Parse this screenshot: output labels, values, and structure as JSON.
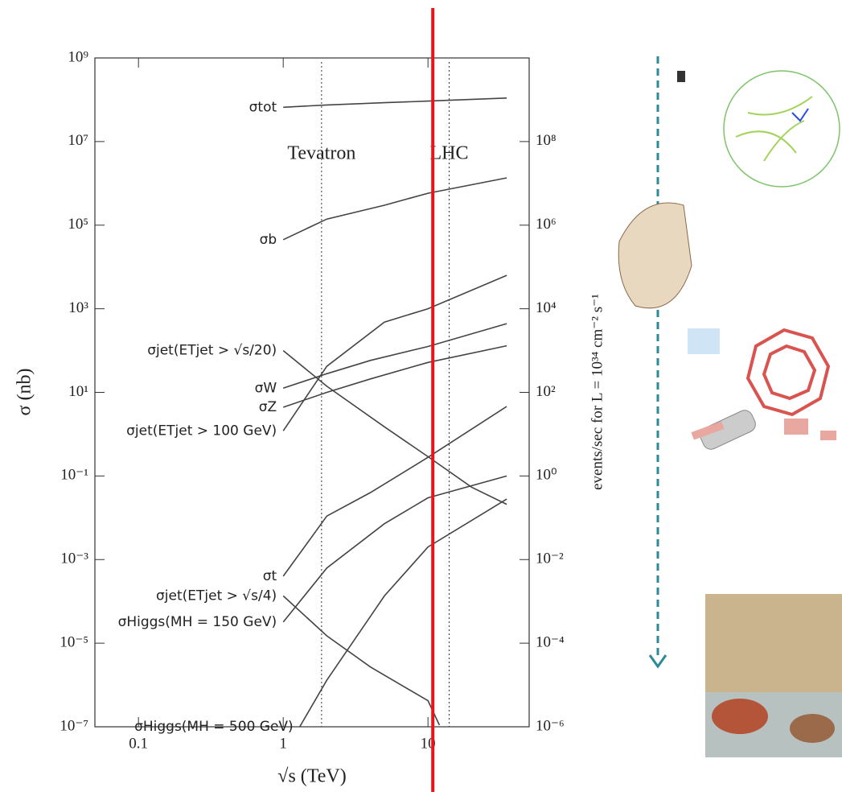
{
  "chart_data": {
    "type": "line",
    "y_label": "σ (nb)",
    "x_label": "√s   (TeV)",
    "y2_label": "events/sec for  L = 10³⁴ cm⁻² s⁻¹",
    "xlog": true,
    "ylog": true,
    "xlim": [
      0.05,
      50
    ],
    "ylim": [
      1e-07,
      1000000000.0
    ],
    "y2lim": [
      1e-06,
      10000000000.0
    ],
    "xticks": [
      0.1,
      1,
      10
    ],
    "yticks": [
      {
        "value": 1000000000.0,
        "label": "10⁹"
      },
      {
        "value": 10000000.0,
        "label": "10⁷"
      },
      {
        "value": 100000.0,
        "label": "10⁵"
      },
      {
        "value": 1000.0,
        "label": "10³"
      },
      {
        "value": 10,
        "label": "10¹"
      },
      {
        "value": 0.1,
        "label": "10⁻¹"
      },
      {
        "value": 0.001,
        "label": "10⁻³"
      },
      {
        "value": 1e-05,
        "label": "10⁻⁵"
      },
      {
        "value": 1e-07,
        "label": "10⁻⁷"
      }
    ],
    "y2ticks": [
      {
        "value": 100000000.0,
        "label": "10⁸"
      },
      {
        "value": 1000000.0,
        "label": "10⁶"
      },
      {
        "value": 10000.0,
        "label": "10⁴"
      },
      {
        "value": 100,
        "label": "10²"
      },
      {
        "value": 1,
        "label": "10⁰"
      },
      {
        "value": 0.01,
        "label": "10⁻²"
      },
      {
        "value": 0.0001,
        "label": "10⁻⁴"
      },
      {
        "value": 1e-06,
        "label": "10⁻⁶"
      }
    ],
    "markers": [
      {
        "label": "Tevatron",
        "x": 1.84
      },
      {
        "label": "LHC",
        "x": 14
      }
    ],
    "highlight_x": 10.8,
    "highlight_color": "#e8141c",
    "series": [
      {
        "name": "σtot",
        "color": "#444444",
        "x": [
          1,
          2,
          5,
          10,
          35
        ],
        "values": [
          66000000.0,
          75000000.0,
          85000000.0,
          93000000.0,
          110000000.0
        ]
      },
      {
        "name": "σb",
        "color": "#444444",
        "x": [
          1,
          2,
          5,
          10,
          35
        ],
        "values": [
          45000.0,
          140000.0,
          300000.0,
          580000.0,
          1350000.0
        ]
      },
      {
        "name": "σjet(ETjet > √s/20)",
        "color": "#444444",
        "x": [
          1,
          2,
          5,
          10,
          20,
          35
        ],
        "values": [
          100,
          14,
          1.5,
          0.29,
          0.054,
          0.021
        ]
      },
      {
        "name": "σW",
        "color": "#444444",
        "x": [
          1,
          2,
          4,
          10,
          35
        ],
        "values": [
          12.6,
          28,
          58,
          125,
          440
        ]
      },
      {
        "name": "σZ",
        "color": "#444444",
        "x": [
          1,
          2,
          4,
          10,
          35
        ],
        "values": [
          4.4,
          10,
          21,
          52,
          130
        ]
      },
      {
        "name": "σjet(ETjet > 100 GeV)",
        "color": "#444444",
        "x": [
          1,
          2,
          5,
          10,
          35
        ],
        "values": [
          1.2,
          42,
          480,
          1000,
          6300
        ]
      },
      {
        "name": "σt",
        "color": "#444444",
        "x": [
          1,
          2,
          4,
          10,
          35
        ],
        "values": [
          0.0004,
          0.011,
          0.04,
          0.28,
          4.6
        ]
      },
      {
        "name": "σjet(ETjet > √s/4)",
        "color": "#444444",
        "x": [
          1,
          2,
          4,
          10,
          12
        ],
        "values": [
          0.000135,
          1.5e-05,
          2.7e-06,
          4.2e-07,
          1.1e-07
        ]
      },
      {
        "name": "σHiggs(MH = 150 GeV)",
        "color": "#444444",
        "x": [
          1,
          2,
          5,
          10,
          35
        ],
        "values": [
          3.2e-05,
          0.00063,
          0.0072,
          0.03,
          0.1
        ]
      },
      {
        "name": "σHiggs(MH = 500 GeV)",
        "color": "#444444",
        "x": [
          1.3,
          2,
          5,
          10,
          35
        ],
        "values": [
          1e-07,
          1.3e-06,
          0.000135,
          0.002,
          0.028
        ]
      }
    ]
  }
}
